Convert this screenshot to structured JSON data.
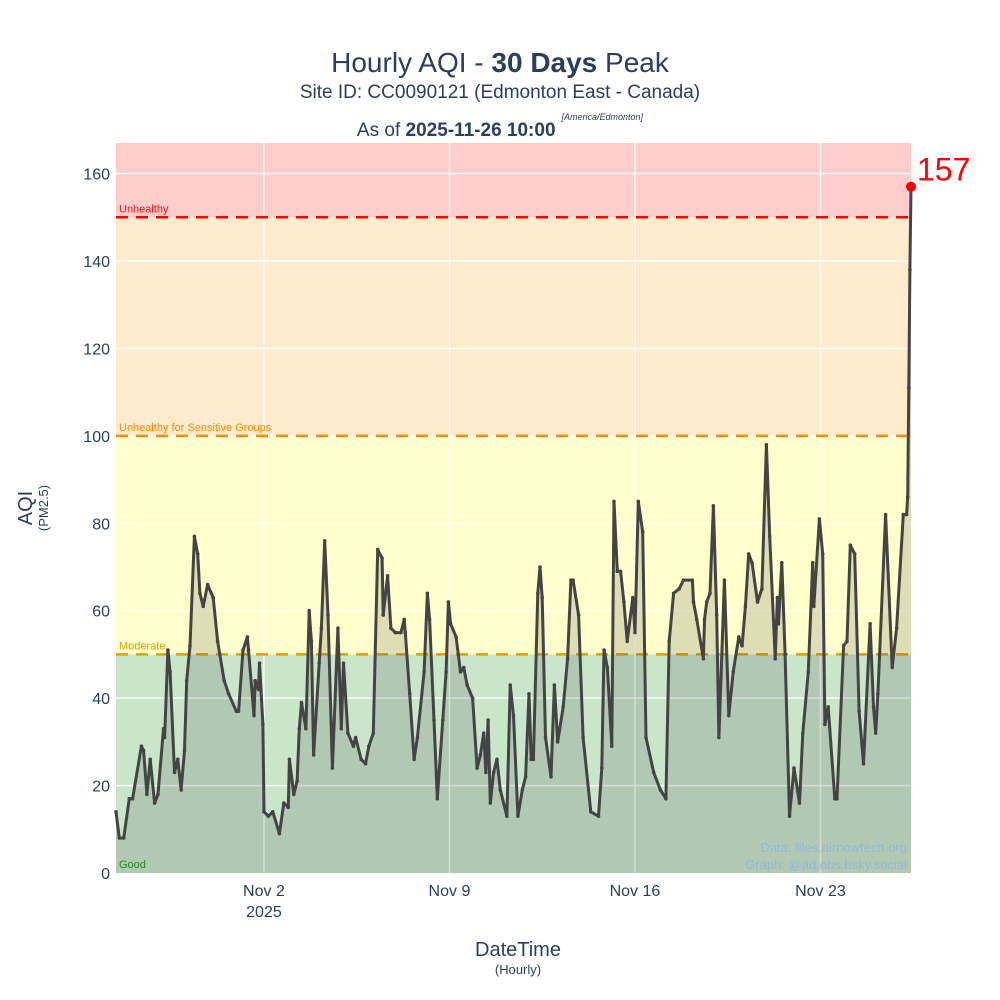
{
  "title": {
    "prefix": "Hourly AQI - ",
    "bold": "30 Days",
    "suffix": " Peak"
  },
  "subtitle": "Site ID: CC0090121 (Edmonton East - Canada)",
  "asof": {
    "prefix": "As of ",
    "bold": "2025-11-26 10:00",
    "tz": "[America/Edmonton]"
  },
  "credits": {
    "data": "Data: files.airnowtech.org",
    "graph": "Graph: @aq.obs.bsky.social"
  },
  "chart_data": {
    "type": "area",
    "xlabel": "DateTime",
    "xlabel_sub": "(Hourly)",
    "ylabel": "AQI",
    "ylabel_sub": "(PM2.5)",
    "xlim": [
      "2025-10-27 10:00",
      "2025-11-26 10:00"
    ],
    "ylim": [
      0,
      167
    ],
    "grid": true,
    "xticks": [
      {
        "value": "2025-11-02 00:00",
        "label": "Nov 2",
        "sub": "2025"
      },
      {
        "value": "2025-11-09 00:00",
        "label": "Nov 9"
      },
      {
        "value": "2025-11-16 00:00",
        "label": "Nov 16"
      },
      {
        "value": "2025-11-23 00:00",
        "label": "Nov 23"
      }
    ],
    "yticks": [
      0,
      20,
      40,
      60,
      80,
      100,
      120,
      140,
      160
    ],
    "bands": [
      {
        "name": "Good",
        "from": 0,
        "to": 50,
        "fill": "#c9e6cb",
        "label_color": "#1a9a1a",
        "line": null
      },
      {
        "name": "Moderate",
        "from": 50,
        "to": 100,
        "fill": "#ffffcc",
        "label_color": "#d9a300",
        "line": "#e0a000"
      },
      {
        "name": "Unhealthy for Sensitive Groups",
        "from": 100,
        "to": 150,
        "fill": "#fdebcd",
        "label_color": "#ff8c00",
        "line": "#ff8c00"
      },
      {
        "name": "Unhealthy",
        "from": 150,
        "to": 167,
        "fill": "#ffcccc",
        "label_color": "#e31a1c",
        "line": "#ff0000"
      }
    ],
    "line_color": "#444444",
    "fill_color": "rgba(70,70,70,0.18)",
    "peak": {
      "x": "2025-11-26 10:00",
      "y": 157,
      "label": "157",
      "color": "#ff0000"
    },
    "series": [
      [
        "2025-10-27 10:00",
        14
      ],
      [
        "2025-10-27 13:00",
        8
      ],
      [
        "2025-10-27 17:00",
        8
      ],
      [
        "2025-10-27 22:00",
        17
      ],
      [
        "2025-10-28 01:00",
        17
      ],
      [
        "2025-10-28 09:00",
        29
      ],
      [
        "2025-10-28 11:00",
        28
      ],
      [
        "2025-10-28 14:00",
        18
      ],
      [
        "2025-10-28 17:00",
        26
      ],
      [
        "2025-10-28 21:00",
        16
      ],
      [
        "2025-10-29 00:00",
        18
      ],
      [
        "2025-10-29 05:00",
        33
      ],
      [
        "2025-10-29 06:00",
        31
      ],
      [
        "2025-10-29 09:00",
        51
      ],
      [
        "2025-10-29 11:00",
        46
      ],
      [
        "2025-10-29 15:00",
        23
      ],
      [
        "2025-10-29 18:00",
        26
      ],
      [
        "2025-10-29 21:00",
        19
      ],
      [
        "2025-10-30 00:00",
        28
      ],
      [
        "2025-10-30 02:00",
        44
      ],
      [
        "2025-10-30 05:00",
        52
      ],
      [
        "2025-10-30 09:00",
        77
      ],
      [
        "2025-10-30 12:00",
        73
      ],
      [
        "2025-10-30 14:00",
        64
      ],
      [
        "2025-10-30 17:00",
        61
      ],
      [
        "2025-10-30 21:00",
        66
      ],
      [
        "2025-10-31 02:00",
        63
      ],
      [
        "2025-10-31 06:00",
        53
      ],
      [
        "2025-10-31 12:00",
        44
      ],
      [
        "2025-10-31 16:00",
        41
      ],
      [
        "2025-10-31 23:00",
        37
      ],
      [
        "2025-11-01 01:00",
        37
      ],
      [
        "2025-11-01 05:00",
        51
      ],
      [
        "2025-11-01 09:00",
        54
      ],
      [
        "2025-11-01 10:00",
        51
      ],
      [
        "2025-11-01 15:00",
        36
      ],
      [
        "2025-11-01 16:00",
        44
      ],
      [
        "2025-11-01 19:00",
        42
      ],
      [
        "2025-11-01 20:00",
        48
      ],
      [
        "2025-11-01 23:00",
        34
      ],
      [
        "2025-11-02 00:00",
        14
      ],
      [
        "2025-11-02 04:00",
        13
      ],
      [
        "2025-11-02 08:00",
        14
      ],
      [
        "2025-11-02 14:00",
        9
      ],
      [
        "2025-11-02 18:00",
        16
      ],
      [
        "2025-11-02 22:00",
        15
      ],
      [
        "2025-11-02 23:00",
        26
      ],
      [
        "2025-11-03 03:00",
        18
      ],
      [
        "2025-11-03 06:00",
        21
      ],
      [
        "2025-11-03 08:00",
        33
      ],
      [
        "2025-11-03 10:00",
        39
      ],
      [
        "2025-11-03 14:00",
        33
      ],
      [
        "2025-11-03 17:00",
        60
      ],
      [
        "2025-11-03 19:00",
        53
      ],
      [
        "2025-11-03 21:00",
        27
      ],
      [
        "2025-11-04 02:00",
        48
      ],
      [
        "2025-11-04 04:00",
        56
      ],
      [
        "2025-11-04 07:00",
        76
      ],
      [
        "2025-11-04 10:00",
        59
      ],
      [
        "2025-11-04 14:00",
        24
      ],
      [
        "2025-11-04 19:00",
        56
      ],
      [
        "2025-11-04 22:00",
        33
      ],
      [
        "2025-11-05 00:00",
        48
      ],
      [
        "2025-11-05 04:00",
        32
      ],
      [
        "2025-11-05 09:00",
        29
      ],
      [
        "2025-11-05 11:00",
        31
      ],
      [
        "2025-11-05 16:00",
        26
      ],
      [
        "2025-11-05 20:00",
        25
      ],
      [
        "2025-11-05 23:00",
        29
      ],
      [
        "2025-11-06 03:00",
        32
      ],
      [
        "2025-11-06 07:00",
        74
      ],
      [
        "2025-11-06 11:00",
        72
      ],
      [
        "2025-11-06 12:00",
        59
      ],
      [
        "2025-11-06 16:00",
        68
      ],
      [
        "2025-11-06 19:00",
        56
      ],
      [
        "2025-11-06 23:00",
        55
      ],
      [
        "2025-11-07 04:00",
        55
      ],
      [
        "2025-11-07 07:00",
        58
      ],
      [
        "2025-11-07 08:00",
        55
      ],
      [
        "2025-11-07 12:00",
        41
      ],
      [
        "2025-11-07 16:00",
        26
      ],
      [
        "2025-11-07 19:00",
        31
      ],
      [
        "2025-11-08 01:00",
        46
      ],
      [
        "2025-11-08 04:00",
        64
      ],
      [
        "2025-11-08 06:00",
        58
      ],
      [
        "2025-11-08 10:00",
        35
      ],
      [
        "2025-11-08 13:00",
        17
      ],
      [
        "2025-11-08 18:00",
        35
      ],
      [
        "2025-11-08 21:00",
        46
      ],
      [
        "2025-11-08 23:00",
        62
      ],
      [
        "2025-11-09 01:00",
        57
      ],
      [
        "2025-11-09 06:00",
        54
      ],
      [
        "2025-11-09 10:00",
        46
      ],
      [
        "2025-11-09 13:00",
        47
      ],
      [
        "2025-11-09 16:00",
        43
      ],
      [
        "2025-11-09 21:00",
        40
      ],
      [
        "2025-11-10 01:00",
        24
      ],
      [
        "2025-11-10 04:00",
        27
      ],
      [
        "2025-11-10 07:00",
        32
      ],
      [
        "2025-11-10 09:00",
        23
      ],
      [
        "2025-11-10 11:00",
        35
      ],
      [
        "2025-11-10 13:00",
        16
      ],
      [
        "2025-11-10 16:00",
        23
      ],
      [
        "2025-11-10 19:00",
        26
      ],
      [
        "2025-11-10 22:00",
        19
      ],
      [
        "2025-11-11 04:00",
        13
      ],
      [
        "2025-11-11 07:00",
        43
      ],
      [
        "2025-11-11 10:00",
        36
      ],
      [
        "2025-11-11 14:00",
        13
      ],
      [
        "2025-11-11 18:00",
        19
      ],
      [
        "2025-11-11 21:00",
        22
      ],
      [
        "2025-11-12 00:00",
        41
      ],
      [
        "2025-11-12 02:00",
        26
      ],
      [
        "2025-11-12 04:00",
        26
      ],
      [
        "2025-11-12 08:00",
        64
      ],
      [
        "2025-11-12 10:00",
        70
      ],
      [
        "2025-11-12 12:00",
        63
      ],
      [
        "2025-11-12 15:00",
        31
      ],
      [
        "2025-11-12 20:00",
        22
      ],
      [
        "2025-11-12 23:00",
        43
      ],
      [
        "2025-11-13 02:00",
        30
      ],
      [
        "2025-11-13 07:00",
        38
      ],
      [
        "2025-11-13 11:00",
        49
      ],
      [
        "2025-11-13 14:00",
        67
      ],
      [
        "2025-11-13 16:00",
        67
      ],
      [
        "2025-11-13 21:00",
        59
      ],
      [
        "2025-11-14 01:00",
        31
      ],
      [
        "2025-11-14 08:00",
        14
      ],
      [
        "2025-11-14 15:00",
        13
      ],
      [
        "2025-11-14 18:00",
        24
      ],
      [
        "2025-11-14 20:00",
        51
      ],
      [
        "2025-11-14 23:00",
        47
      ],
      [
        "2025-11-15 03:00",
        29
      ],
      [
        "2025-11-15 05:00",
        85
      ],
      [
        "2025-11-15 08:00",
        69
      ],
      [
        "2025-11-15 11:00",
        69
      ],
      [
        "2025-11-15 14:00",
        62
      ],
      [
        "2025-11-15 17:00",
        53
      ],
      [
        "2025-11-15 22:00",
        63
      ],
      [
        "2025-11-16 00:00",
        55
      ],
      [
        "2025-11-16 03:00",
        85
      ],
      [
        "2025-11-16 07:00",
        78
      ],
      [
        "2025-11-16 10:00",
        31
      ],
      [
        "2025-11-16 17:00",
        23
      ],
      [
        "2025-11-16 23:00",
        19
      ],
      [
        "2025-11-17 04:00",
        17
      ],
      [
        "2025-11-17 07:00",
        53
      ],
      [
        "2025-11-17 11:00",
        64
      ],
      [
        "2025-11-17 16:00",
        65
      ],
      [
        "2025-11-17 20:00",
        67
      ],
      [
        "2025-11-18 04:00",
        67
      ],
      [
        "2025-11-18 05:00",
        62
      ],
      [
        "2025-11-18 08:00",
        58
      ],
      [
        "2025-11-18 14:00",
        49
      ],
      [
        "2025-11-18 15:00",
        58
      ],
      [
        "2025-11-18 17:00",
        62
      ],
      [
        "2025-11-18 20:00",
        64
      ],
      [
        "2025-11-18 23:00",
        84
      ],
      [
        "2025-11-19 02:00",
        59
      ],
      [
        "2025-11-19 04:00",
        31
      ],
      [
        "2025-11-19 09:00",
        67
      ],
      [
        "2025-11-19 13:00",
        36
      ],
      [
        "2025-11-19 17:00",
        46
      ],
      [
        "2025-11-19 22:00",
        54
      ],
      [
        "2025-11-20 01:00",
        52
      ],
      [
        "2025-11-20 04:00",
        61
      ],
      [
        "2025-11-20 07:00",
        73
      ],
      [
        "2025-11-20 10:00",
        71
      ],
      [
        "2025-11-20 15:00",
        62
      ],
      [
        "2025-11-20 19:00",
        65
      ],
      [
        "2025-11-20 23:00",
        98
      ],
      [
        "2025-11-21 02:00",
        77
      ],
      [
        "2025-11-21 07:00",
        49
      ],
      [
        "2025-11-21 09:00",
        63
      ],
      [
        "2025-11-21 10:00",
        57
      ],
      [
        "2025-11-21 13:00",
        71
      ],
      [
        "2025-11-21 16:00",
        50
      ],
      [
        "2025-11-21 20:00",
        13
      ],
      [
        "2025-11-22 00:00",
        24
      ],
      [
        "2025-11-22 05:00",
        16
      ],
      [
        "2025-11-22 08:00",
        32
      ],
      [
        "2025-11-22 13:00",
        46
      ],
      [
        "2025-11-22 17:00",
        71
      ],
      [
        "2025-11-22 18:00",
        61
      ],
      [
        "2025-11-22 23:00",
        81
      ],
      [
        "2025-11-23 02:00",
        73
      ],
      [
        "2025-11-23 04:00",
        34
      ],
      [
        "2025-11-23 07:00",
        38
      ],
      [
        "2025-11-23 13:00",
        17
      ],
      [
        "2025-11-23 15:00",
        17
      ],
      [
        "2025-11-23 21:00",
        52
      ],
      [
        "2025-11-24 00:00",
        53
      ],
      [
        "2025-11-24 03:00",
        75
      ],
      [
        "2025-11-24 07:00",
        73
      ],
      [
        "2025-11-24 11:00",
        37
      ],
      [
        "2025-11-24 15:00",
        25
      ],
      [
        "2025-11-24 21:00",
        57
      ],
      [
        "2025-11-25 00:00",
        38
      ],
      [
        "2025-11-25 02:00",
        32
      ],
      [
        "2025-11-25 04:00",
        41
      ],
      [
        "2025-11-25 11:00",
        82
      ],
      [
        "2025-11-25 17:00",
        47
      ],
      [
        "2025-11-25 21:00",
        56
      ],
      [
        "2025-11-26 03:00",
        82
      ],
      [
        "2025-11-26 06:00",
        82
      ],
      [
        "2025-11-26 07:00",
        86
      ],
      [
        "2025-11-26 08:00",
        111
      ],
      [
        "2025-11-26 09:00",
        138
      ],
      [
        "2025-11-26 10:00",
        157
      ]
    ]
  }
}
